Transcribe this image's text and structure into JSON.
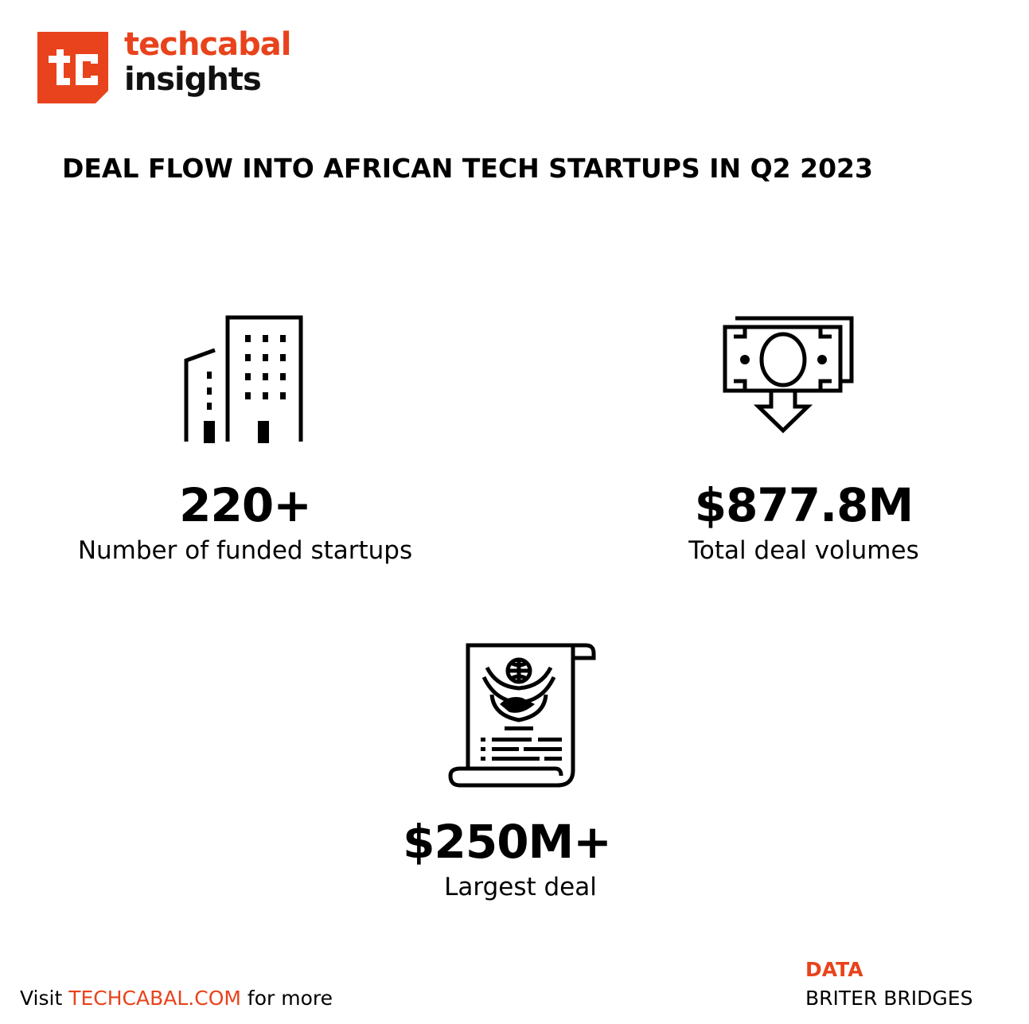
{
  "brand": {
    "line1": "techcabal",
    "line2": "insights",
    "logo_color": "#e8431c"
  },
  "title": "DEAL FLOW INTO AFRICAN TECH STARTUPS IN Q2 2023",
  "stats": [
    {
      "icon": "building-icon",
      "value": "220+",
      "label": "Number of funded startups"
    },
    {
      "icon": "money-down-icon",
      "value": "$877.8M",
      "label": "Total deal volumes"
    },
    {
      "icon": "certificate-scroll-icon",
      "value": "$250M+",
      "label": "Largest deal"
    }
  ],
  "footer": {
    "visit": "Visit",
    "site": "TECHCABAL.COM",
    "more": "for more",
    "data_label": "DATA",
    "data_source": "BRITER BRIDGES"
  }
}
